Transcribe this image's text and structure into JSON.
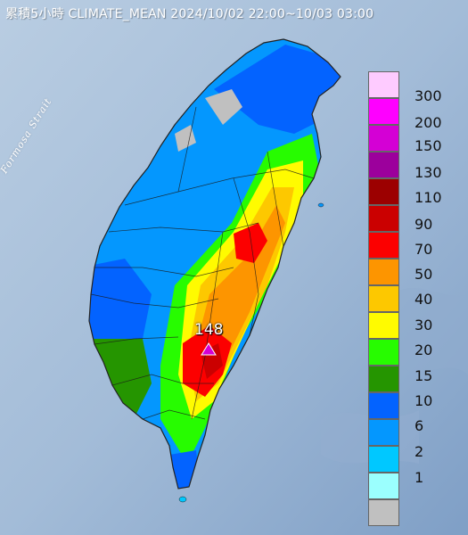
{
  "header": {
    "title": "累積5小時 CLIMATE_MEAN 2024/10/02 22:00~10/03 03:00"
  },
  "map": {
    "strait_label": "Formosa Strait",
    "max_marker": {
      "value": "148"
    }
  },
  "legend": {
    "items": [
      {
        "label": "300",
        "color": "#fecbff"
      },
      {
        "label": "200",
        "color": "#fe00ff"
      },
      {
        "label": "150",
        "color": "#d400d5"
      },
      {
        "label": "130",
        "color": "#9c009c"
      },
      {
        "label": "110",
        "color": "#9c0000"
      },
      {
        "label": "90",
        "color": "#cb0000"
      },
      {
        "label": "70",
        "color": "#fc0000"
      },
      {
        "label": "50",
        "color": "#fd9500"
      },
      {
        "label": "40",
        "color": "#fdc800"
      },
      {
        "label": "30",
        "color": "#fffb00"
      },
      {
        "label": "20",
        "color": "#27fc00"
      },
      {
        "label": "15",
        "color": "#259500"
      },
      {
        "label": "10",
        "color": "#0363ff"
      },
      {
        "label": "6",
        "color": "#0497fe"
      },
      {
        "label": "2",
        "color": "#00c8ff"
      },
      {
        "label": "1",
        "color": "#9bfffe"
      },
      {
        "label": "",
        "color": "#c0c0c0"
      }
    ]
  }
}
